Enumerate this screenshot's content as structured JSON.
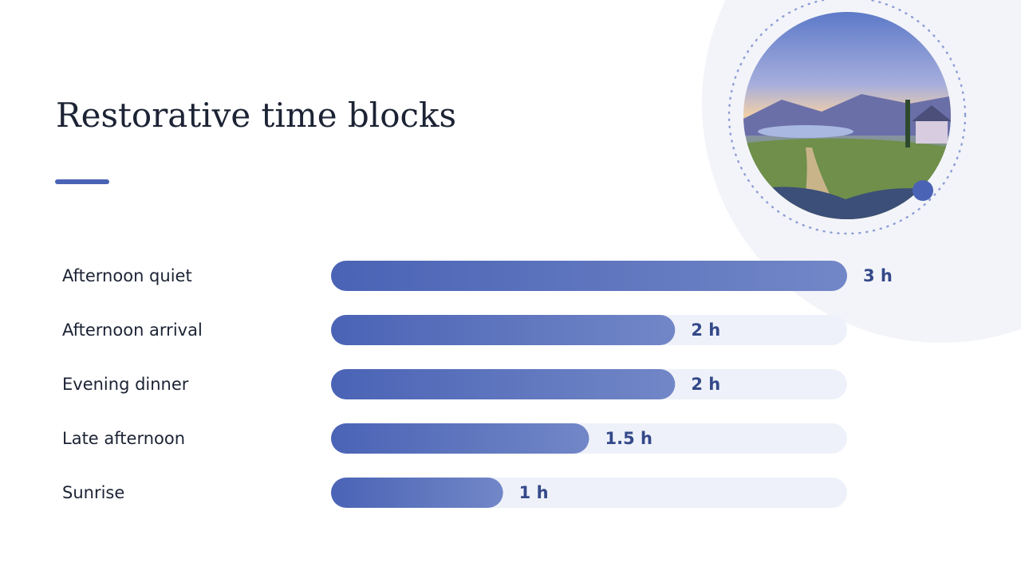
{
  "chart_data": {
    "type": "bar",
    "orientation": "horizontal",
    "title": "Restorative time blocks",
    "categories": [
      "Afternoon quiet",
      "Afternoon arrival",
      "Evening dinner",
      "Late afternoon",
      "Sunrise"
    ],
    "values": [
      3,
      2,
      2,
      1.5,
      1
    ],
    "value_labels": [
      "3 h",
      "2 h",
      "2 h",
      "1.5 h",
      "1 h"
    ],
    "xlim": [
      0,
      3
    ],
    "color": "#4a63b5"
  }
}
